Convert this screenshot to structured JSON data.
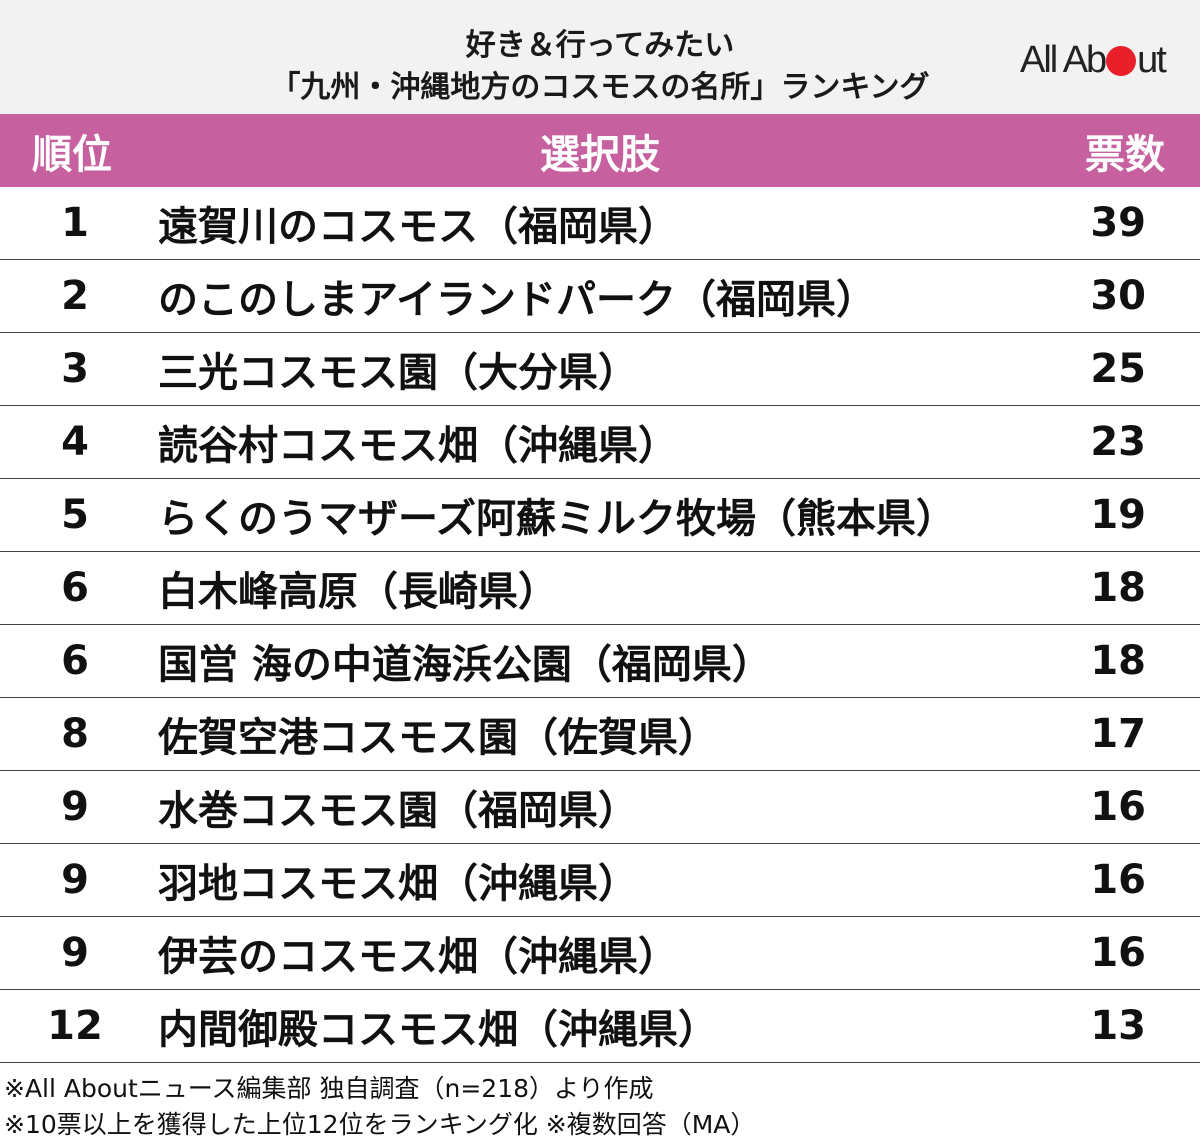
{
  "title_line1": "好き＆行ってみたい",
  "title_line2": "「九州・沖縄地方のコスモスの名所」ランキング",
  "logo": {
    "text_before": "All Ab",
    "text_after": "ut",
    "dot_color": "#e8202a"
  },
  "colors": {
    "header_band": "#c7609f"
  },
  "chart_data": {
    "type": "table",
    "columns": [
      "順位",
      "選択肢",
      "票数"
    ],
    "rows": [
      {
        "rank": "1",
        "name": "遠賀川のコスモス（福岡県）",
        "votes": 39
      },
      {
        "rank": "2",
        "name": "のこのしまアイランドパーク（福岡県）",
        "votes": 30
      },
      {
        "rank": "3",
        "name": "三光コスモス園（大分県）",
        "votes": 25
      },
      {
        "rank": "4",
        "name": "読谷村コスモス畑（沖縄県）",
        "votes": 23
      },
      {
        "rank": "5",
        "name": "らくのうマザーズ阿蘇ミルク牧場（熊本県）",
        "votes": 19
      },
      {
        "rank": "6",
        "name": "白木峰高原（長崎県）",
        "votes": 18
      },
      {
        "rank": "6",
        "name": "国営 海の中道海浜公園（福岡県）",
        "votes": 18
      },
      {
        "rank": "8",
        "name": "佐賀空港コスモス園（佐賀県）",
        "votes": 17
      },
      {
        "rank": "9",
        "name": "水巻コスモス園（福岡県）",
        "votes": 16
      },
      {
        "rank": "9",
        "name": "羽地コスモス畑（沖縄県）",
        "votes": 16
      },
      {
        "rank": "9",
        "name": "伊芸のコスモス畑（沖縄県）",
        "votes": 16
      },
      {
        "rank": "12",
        "name": "内間御殿コスモス畑（沖縄県）",
        "votes": 13
      }
    ]
  },
  "notes": [
    "※All Aboutニュース編集部 独自調査（n=218）より作成",
    "※10票以上を獲得した上位12位をランキング化 ※複数回答（MA）"
  ]
}
